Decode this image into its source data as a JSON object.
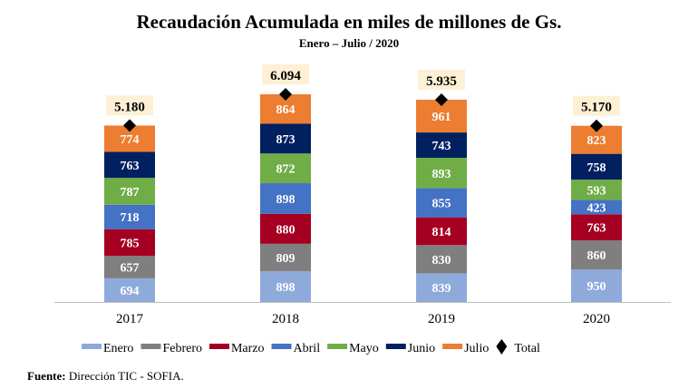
{
  "chart_data": {
    "type": "bar",
    "stacked": true,
    "title": "Recaudación Acumulada en miles de millones de Gs.",
    "subtitle": "Enero – Julio / 2020",
    "categories": [
      "2017",
      "2018",
      "2019",
      "2020"
    ],
    "series": [
      {
        "name": "Enero",
        "color": "#8eaadb",
        "values": [
          694,
          898,
          839,
          950
        ]
      },
      {
        "name": "Febrero",
        "color": "#7f7f7f",
        "values": [
          657,
          809,
          830,
          860
        ]
      },
      {
        "name": "Marzo",
        "color": "#a50021",
        "values": [
          785,
          880,
          814,
          763
        ]
      },
      {
        "name": "Abril",
        "color": "#4472c4",
        "values": [
          718,
          898,
          855,
          423
        ]
      },
      {
        "name": "Mayo",
        "color": "#70ad47",
        "values": [
          787,
          872,
          893,
          593
        ]
      },
      {
        "name": "Junio",
        "color": "#002060",
        "values": [
          763,
          873,
          743,
          758
        ]
      },
      {
        "name": "Julio",
        "color": "#ed7d31",
        "values": [
          774,
          864,
          961,
          823
        ]
      }
    ],
    "total": {
      "name": "Total",
      "marker": "diamond",
      "color": "#000000",
      "labels": [
        "5.180",
        "6.094",
        "5.935",
        "5.170"
      ],
      "values": [
        5180,
        6094,
        5935,
        5170
      ]
    },
    "total_label_bg": "#fdf0d5",
    "ylim": [
      0,
      6094
    ],
    "grid": false,
    "legend": "bottom"
  },
  "source": {
    "label": "Fuente:",
    "text": " Dirección TIC - SOFIA."
  }
}
